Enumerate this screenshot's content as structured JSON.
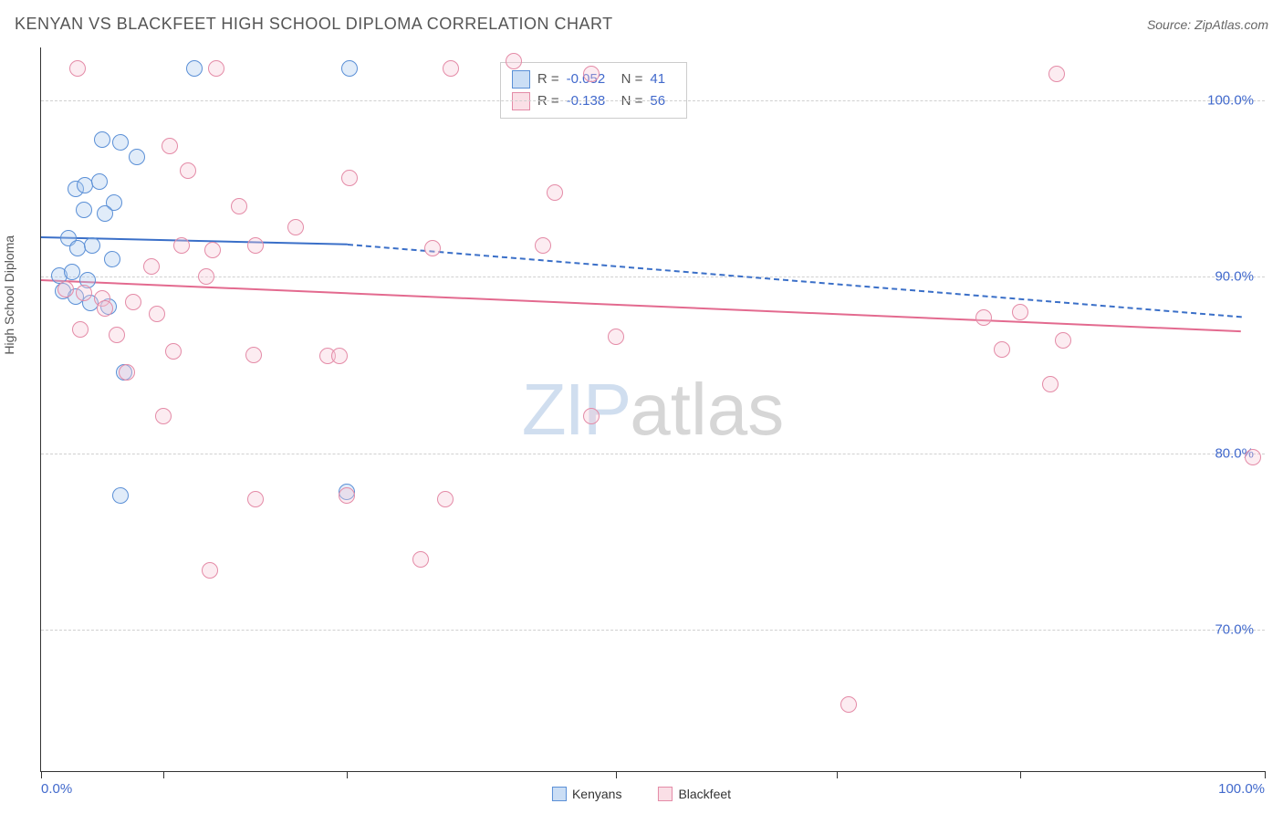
{
  "title": "KENYAN VS BLACKFEET HIGH SCHOOL DIPLOMA CORRELATION CHART",
  "source_label": "Source:",
  "source_name": "ZipAtlas.com",
  "ylabel": "High School Diploma",
  "watermark_a": "ZIP",
  "watermark_b": "atlas",
  "chart": {
    "type": "scatter",
    "background_color": "#ffffff",
    "grid_color": "#d0d0d0",
    "axis_color": "#333333",
    "label_color": "#555555",
    "tick_label_color": "#4169cc",
    "tick_fontsize": 15,
    "title_fontsize": 18,
    "label_fontsize": 14,
    "xlim": [
      0,
      100
    ],
    "ylim": [
      62,
      103
    ],
    "y_gridlines": [
      70,
      80,
      90,
      100
    ],
    "y_tick_labels": [
      "70.0%",
      "80.0%",
      "90.0%",
      "100.0%"
    ],
    "x_ticks": [
      0,
      10,
      25,
      47,
      65,
      80,
      100
    ],
    "x_tick_labels_shown": {
      "0": "0.0%",
      "100": "100.0%"
    },
    "marker_radius": 9,
    "marker_border_width": 1,
    "marker_fill_opacity": 0.35,
    "series": [
      {
        "name": "Kenyans",
        "color_fill": "#a9c8ee",
        "color_border": "#5a8fd6",
        "R": "-0.052",
        "N": "41",
        "trend": {
          "x1": 0,
          "y1": 92.3,
          "x2_solid": 25,
          "y2_solid": 91.9,
          "x2": 98,
          "y2": 87.8,
          "color": "#3a6fc8",
          "width": 2.5,
          "dash": "6,6"
        },
        "points": [
          [
            12.5,
            101.8
          ],
          [
            25.2,
            101.8
          ],
          [
            5.0,
            97.8
          ],
          [
            6.5,
            97.6
          ],
          [
            7.8,
            96.8
          ],
          [
            2.8,
            95.0
          ],
          [
            3.6,
            95.2
          ],
          [
            4.8,
            95.4
          ],
          [
            6.0,
            94.2
          ],
          [
            3.5,
            93.8
          ],
          [
            5.2,
            93.6
          ],
          [
            2.2,
            92.2
          ],
          [
            3.0,
            91.6
          ],
          [
            4.2,
            91.8
          ],
          [
            5.8,
            91.0
          ],
          [
            1.5,
            90.1
          ],
          [
            2.5,
            90.3
          ],
          [
            3.8,
            89.8
          ],
          [
            1.8,
            89.2
          ],
          [
            2.8,
            88.9
          ],
          [
            4.0,
            88.5
          ],
          [
            5.5,
            88.3
          ],
          [
            6.8,
            84.6
          ],
          [
            25.0,
            77.8
          ],
          [
            6.5,
            77.6
          ]
        ]
      },
      {
        "name": "Blackfeet",
        "color_fill": "#f6c9d6",
        "color_border": "#e48ba7",
        "R": "-0.138",
        "N": "56",
        "trend": {
          "x1": 0,
          "y1": 89.9,
          "x2_solid": 98,
          "y2_solid": 87.0,
          "x2": 98,
          "y2": 87.0,
          "color": "#e36a8f",
          "width": 2.5,
          "dash": ""
        },
        "points": [
          [
            3.0,
            101.8
          ],
          [
            14.3,
            101.8
          ],
          [
            33.5,
            101.8
          ],
          [
            38.6,
            102.2
          ],
          [
            45.0,
            101.5
          ],
          [
            83.0,
            101.5
          ],
          [
            10.5,
            97.4
          ],
          [
            12.0,
            96.0
          ],
          [
            25.2,
            95.6
          ],
          [
            16.2,
            94.0
          ],
          [
            20.8,
            92.8
          ],
          [
            11.5,
            91.8
          ],
          [
            14.0,
            91.5
          ],
          [
            17.5,
            91.8
          ],
          [
            9.0,
            90.6
          ],
          [
            13.5,
            90.0
          ],
          [
            2.0,
            89.3
          ],
          [
            3.5,
            89.1
          ],
          [
            5.0,
            88.8
          ],
          [
            7.5,
            88.6
          ],
          [
            9.5,
            87.9
          ],
          [
            3.2,
            87.0
          ],
          [
            6.2,
            86.7
          ],
          [
            10.8,
            85.8
          ],
          [
            17.4,
            85.6
          ],
          [
            23.4,
            85.5
          ],
          [
            24.4,
            85.5
          ],
          [
            7.0,
            84.6
          ],
          [
            10.0,
            82.1
          ],
          [
            5.2,
            88.2
          ],
          [
            32.0,
            91.6
          ],
          [
            41.0,
            91.8
          ],
          [
            42.0,
            94.8
          ],
          [
            45.0,
            82.1
          ],
          [
            47.0,
            86.6
          ],
          [
            77.0,
            87.7
          ],
          [
            78.5,
            85.9
          ],
          [
            80.0,
            88.0
          ],
          [
            83.5,
            86.4
          ],
          [
            82.5,
            83.9
          ],
          [
            99.0,
            79.8
          ],
          [
            25.0,
            77.6
          ],
          [
            17.5,
            77.4
          ],
          [
            33.0,
            77.4
          ],
          [
            13.8,
            73.4
          ],
          [
            31.0,
            74.0
          ],
          [
            66.0,
            65.8
          ]
        ]
      }
    ],
    "stats_box": {
      "left_pct": 37.5,
      "top_pct": 2.0,
      "border_color": "#cccccc",
      "bg": "#ffffff"
    },
    "legend_bottom": {
      "items": [
        "Kenyans",
        "Blackfeet"
      ]
    }
  }
}
